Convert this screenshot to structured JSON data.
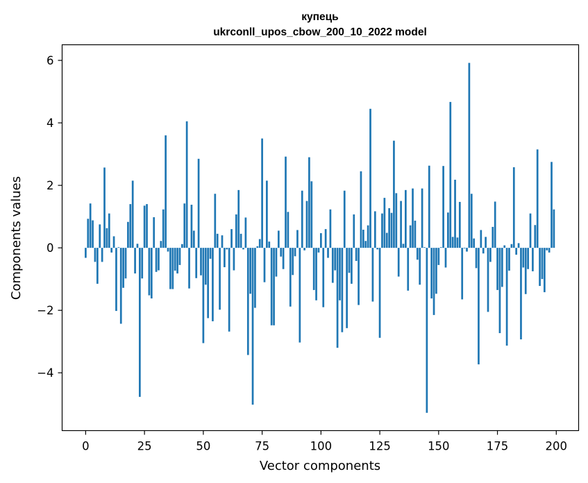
{
  "chart_data": {
    "type": "bar",
    "title_line1": "купець",
    "title_line2": "ukrconll_upos_cbow_200_10_2022 model",
    "xlabel": "Vector components",
    "ylabel": "Components values",
    "xlim": [
      -10,
      209.5
    ],
    "ylim": [
      -5.85,
      6.5
    ],
    "xticks": [
      0,
      25,
      50,
      75,
      100,
      125,
      150,
      175,
      200
    ],
    "yticks": [
      -4,
      -2,
      0,
      2,
      4,
      6
    ],
    "ytick_labels": [
      "−4",
      "−2",
      "0",
      "2",
      "4",
      "6"
    ],
    "bar_color": "#1f77b4",
    "grid": false,
    "values": [
      -0.32,
      0.93,
      1.42,
      0.88,
      -0.45,
      -1.15,
      0.75,
      -0.45,
      2.57,
      0.63,
      1.1,
      -0.15,
      0.37,
      -2.02,
      0.02,
      -2.43,
      -1.28,
      -0.98,
      0.83,
      1.4,
      2.15,
      -0.82,
      0.13,
      -4.77,
      -0.98,
      1.35,
      1.4,
      -1.52,
      -1.62,
      0.98,
      -0.77,
      -0.72,
      0.22,
      1.23,
      3.6,
      -0.12,
      -1.32,
      -1.32,
      -0.73,
      -0.82,
      -0.55,
      0.12,
      1.42,
      4.05,
      -1.3,
      1.38,
      0.55,
      -0.97,
      2.85,
      -0.88,
      -3.05,
      -1.18,
      -2.25,
      -0.35,
      -2.35,
      1.73,
      0.45,
      -1.98,
      0.4,
      -0.62,
      -0.05,
      -2.68,
      0.6,
      -0.72,
      1.07,
      1.85,
      0.45,
      -0.05,
      0.97,
      -3.43,
      -1.47,
      -5.02,
      -1.92,
      0.05,
      0.28,
      3.5,
      -1.1,
      2.15,
      0.2,
      -2.48,
      -2.48,
      -0.92,
      0.55,
      -0.28,
      -0.68,
      2.92,
      1.15,
      -1.88,
      -0.87,
      -0.27,
      0.57,
      -3.03,
      1.83,
      -0.08,
      1.5,
      2.9,
      2.13,
      -1.35,
      -1.68,
      -0.15,
      0.47,
      -1.9,
      0.6,
      -0.32,
      1.23,
      -1.12,
      -0.72,
      -3.2,
      -1.68,
      -2.7,
      1.83,
      -2.57,
      -0.8,
      -1.15,
      1.07,
      -0.42,
      -1.83,
      2.45,
      0.58,
      0.22,
      0.72,
      4.45,
      -1.72,
      1.17,
      -0.05,
      -2.88,
      1.1,
      1.6,
      0.48,
      1.27,
      1.12,
      3.43,
      1.75,
      -0.92,
      1.5,
      0.13,
      1.85,
      -1.37,
      0.72,
      1.9,
      0.87,
      -0.38,
      -1.18,
      1.9,
      0.02,
      -5.28,
      2.63,
      -1.62,
      -2.15,
      -1.47,
      -0.55,
      0.02,
      2.62,
      -0.63,
      1.13,
      4.67,
      0.35,
      2.18,
      0.33,
      1.47,
      -1.65,
      -0.02,
      -0.12,
      5.92,
      1.73,
      0.3,
      -0.65,
      -3.73,
      0.57,
      -0.18,
      0.35,
      -2.05,
      -0.45,
      0.67,
      1.48,
      -1.35,
      -2.73,
      -1.25,
      0.08,
      -3.13,
      -0.73,
      0.12,
      2.58,
      -0.22,
      0.15,
      -2.93,
      -0.63,
      -1.48,
      -0.68,
      1.1,
      -0.75,
      0.73,
      3.15,
      -1.22,
      -1.0,
      -1.42,
      -0.08,
      -0.15,
      2.75,
      1.23
    ]
  }
}
